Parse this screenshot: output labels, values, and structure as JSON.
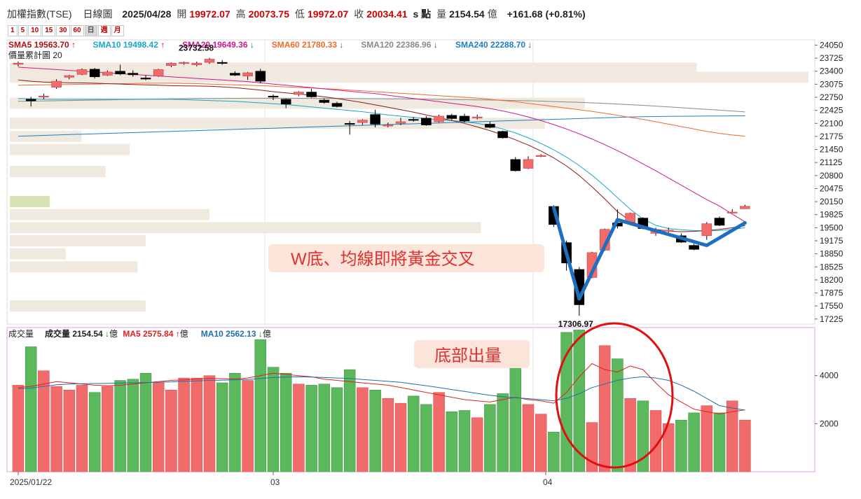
{
  "header": {
    "index_name": "加權指數(TSE)",
    "chart_kind": "日線圖",
    "date": "2025/04/28",
    "open_label": "開",
    "open": "19972.07",
    "high_label": "高",
    "high": "20073.75",
    "low_label": "低",
    "low": "19972.07",
    "close_label": "收",
    "close": "20034.41",
    "unit": "s 點",
    "volume_label": "量",
    "volume": "2154.54",
    "volume_unit": "億",
    "change": "+161.68 (+0.81%)"
  },
  "periods": [
    {
      "label": "1",
      "active": false
    },
    {
      "label": "5",
      "active": false
    },
    {
      "label": "10",
      "active": false
    },
    {
      "label": "15",
      "active": false
    },
    {
      "label": "30",
      "active": false
    },
    {
      "label": "60",
      "active": false
    },
    {
      "label": "日",
      "active": true
    },
    {
      "label": "週",
      "active": false
    },
    {
      "label": "月",
      "active": false
    }
  ],
  "ma_legend": [
    {
      "label": "SMA5 19563.70",
      "arrow": "↑",
      "color": "#b01010"
    },
    {
      "label": "SMA10 19498.42",
      "arrow": "↑",
      "color": "#1aa7c9"
    },
    {
      "label": "SMA20 19649.36",
      "arrow": "↓",
      "color": "#d0198f"
    },
    {
      "label": "SMA60 21780.33",
      "arrow": "↓",
      "color": "#ef6b2a"
    },
    {
      "label": "SMA120 22386.96",
      "arrow": "↓",
      "color": "#8a8a8a"
    },
    {
      "label": "SMA240 22288.70",
      "arrow": "↓",
      "color": "#1f7fc4"
    }
  ],
  "volume_profile_label": "價量累計圖 20",
  "volume_legend": [
    {
      "label": "成交量",
      "color": "#222222"
    },
    {
      "label": "成交量 2154.54",
      "arrow": "↓",
      "suffix": "億",
      "color": "#222222"
    },
    {
      "label": "MA5 2575.84",
      "arrow": "↑",
      "suffix": "億",
      "color": "#e02020"
    },
    {
      "label": "MA10 2562.13",
      "arrow": "↓",
      "suffix": "億",
      "color": "#1f6fb0"
    }
  ],
  "annotations": {
    "w_bottom": "W底、均線即將黃金交叉",
    "bottom_volume": "底部出量",
    "high_marker": "23732.58",
    "low_marker": "17306.97"
  },
  "colors": {
    "up": "#f26b6b",
    "down": "#000000",
    "vol_up": "#f26b6b",
    "vol_down": "#5cb85c",
    "w_line": "#1f6fc0",
    "circle": "#e01010"
  },
  "chart_data": {
    "type": "candlestick",
    "x_tick_labels": [
      "2025/01/22",
      "03",
      "04"
    ],
    "y_ticks_price": [
      24050,
      23725,
      23400,
      23075,
      22750,
      22425,
      22100,
      21775,
      21450,
      21125,
      20800,
      20475,
      20150,
      19825,
      19500,
      19175,
      18850,
      18525,
      18200,
      17875,
      17550,
      17225
    ],
    "y_ticks_volume": [
      4000,
      2000
    ],
    "candles": [
      {
        "o": 23570,
        "h": 23640,
        "l": 23520,
        "c": 23600
      },
      {
        "o": 22700,
        "h": 22760,
        "l": 22520,
        "c": 22660
      },
      {
        "o": 22760,
        "h": 22840,
        "l": 22700,
        "c": 22780
      },
      {
        "o": 23000,
        "h": 23200,
        "l": 22960,
        "c": 23150
      },
      {
        "o": 23250,
        "h": 23310,
        "l": 23200,
        "c": 23290
      },
      {
        "o": 23320,
        "h": 23470,
        "l": 23300,
        "c": 23440
      },
      {
        "o": 23450,
        "h": 23480,
        "l": 23220,
        "c": 23260
      },
      {
        "o": 23300,
        "h": 23420,
        "l": 23280,
        "c": 23380
      },
      {
        "o": 23400,
        "h": 23560,
        "l": 23300,
        "c": 23330
      },
      {
        "o": 23350,
        "h": 23420,
        "l": 23260,
        "c": 23310
      },
      {
        "o": 23230,
        "h": 23300,
        "l": 23180,
        "c": 23220
      },
      {
        "o": 23280,
        "h": 23460,
        "l": 23260,
        "c": 23440
      },
      {
        "o": 23540,
        "h": 23620,
        "l": 23500,
        "c": 23600
      },
      {
        "o": 23590,
        "h": 23640,
        "l": 23560,
        "c": 23620
      },
      {
        "o": 23560,
        "h": 23640,
        "l": 23520,
        "c": 23600
      },
      {
        "o": 23620,
        "h": 23732.58,
        "l": 23580,
        "c": 23700
      },
      {
        "o": 23620,
        "h": 23680,
        "l": 23560,
        "c": 23600
      },
      {
        "o": 23350,
        "h": 23400,
        "l": 23280,
        "c": 23300
      },
      {
        "o": 23280,
        "h": 23380,
        "l": 23180,
        "c": 23360
      },
      {
        "o": 23400,
        "h": 23460,
        "l": 23100,
        "c": 23150
      },
      {
        "o": 22780,
        "h": 22820,
        "l": 22680,
        "c": 22760
      },
      {
        "o": 22700,
        "h": 22720,
        "l": 22480,
        "c": 22580
      },
      {
        "o": 22820,
        "h": 22900,
        "l": 22780,
        "c": 22880
      },
      {
        "o": 22880,
        "h": 22960,
        "l": 22740,
        "c": 22760
      },
      {
        "o": 22680,
        "h": 22720,
        "l": 22590,
        "c": 22620
      },
      {
        "o": 22600,
        "h": 22640,
        "l": 22500,
        "c": 22520
      },
      {
        "o": 22100,
        "h": 22160,
        "l": 21820,
        "c": 22080
      },
      {
        "o": 22120,
        "h": 22200,
        "l": 22060,
        "c": 22180
      },
      {
        "o": 22320,
        "h": 22440,
        "l": 22000,
        "c": 22080
      },
      {
        "o": 22050,
        "h": 22120,
        "l": 22000,
        "c": 22060
      },
      {
        "o": 22100,
        "h": 22240,
        "l": 22060,
        "c": 22140
      },
      {
        "o": 22200,
        "h": 22260,
        "l": 22140,
        "c": 22180
      },
      {
        "o": 22230,
        "h": 22280,
        "l": 22040,
        "c": 22060
      },
      {
        "o": 22140,
        "h": 22320,
        "l": 22120,
        "c": 22280
      },
      {
        "o": 22300,
        "h": 22340,
        "l": 22180,
        "c": 22220
      },
      {
        "o": 22280,
        "h": 22340,
        "l": 22120,
        "c": 22160
      },
      {
        "o": 22250,
        "h": 22320,
        "l": 22200,
        "c": 22260
      },
      {
        "o": 22080,
        "h": 22140,
        "l": 21980,
        "c": 22000
      },
      {
        "o": 21900,
        "h": 21920,
        "l": 21720,
        "c": 21740
      },
      {
        "o": 21200,
        "h": 21260,
        "l": 20900,
        "c": 20920
      },
      {
        "o": 20980,
        "h": 21280,
        "l": 20960,
        "c": 21200
      },
      {
        "o": 21290,
        "h": 21330,
        "l": 21260,
        "c": 21300
      },
      {
        "o": 20030,
        "h": 20060,
        "l": 19520,
        "c": 19580
      },
      {
        "o": 19130,
        "h": 19180,
        "l": 18430,
        "c": 18620
      },
      {
        "o": 18460,
        "h": 18520,
        "l": 17306.97,
        "c": 17580
      },
      {
        "o": 18260,
        "h": 18900,
        "l": 18240,
        "c": 18880
      },
      {
        "o": 18940,
        "h": 19480,
        "l": 18920,
        "c": 19460
      },
      {
        "o": 19620,
        "h": 19960,
        "l": 19480,
        "c": 19540
      },
      {
        "o": 19640,
        "h": 19880,
        "l": 19600,
        "c": 19860
      },
      {
        "o": 19740,
        "h": 19760,
        "l": 19460,
        "c": 19480
      },
      {
        "o": 19360,
        "h": 19500,
        "l": 19300,
        "c": 19420
      },
      {
        "o": 19420,
        "h": 19500,
        "l": 19380,
        "c": 19440
      },
      {
        "o": 19300,
        "h": 19360,
        "l": 19120,
        "c": 19140
      },
      {
        "o": 19060,
        "h": 19100,
        "l": 18940,
        "c": 18960
      },
      {
        "o": 19300,
        "h": 19640,
        "l": 19200,
        "c": 19600
      },
      {
        "o": 19740,
        "h": 19780,
        "l": 19540,
        "c": 19560
      },
      {
        "o": 19870,
        "h": 19960,
        "l": 19860,
        "c": 19890
      },
      {
        "o": 19972.07,
        "h": 20073.75,
        "l": 19972.07,
        "c": 20034.41
      }
    ],
    "volumes": [
      3600,
      5200,
      4200,
      3550,
      3400,
      3600,
      3300,
      3550,
      3800,
      3850,
      4100,
      3700,
      3400,
      3900,
      3900,
      4000,
      3700,
      4100,
      3800,
      5500,
      4350,
      4100,
      3650,
      3600,
      3650,
      3500,
      4250,
      3500,
      3400,
      3050,
      2850,
      3150,
      2800,
      3300,
      2500,
      2550,
      2250,
      2800,
      3250,
      4350,
      2800,
      2400,
      1650,
      5800,
      5900,
      2050,
      5250,
      4700,
      3050,
      2950,
      2550,
      2000,
      2150,
      2450,
      2750,
      2450,
      2950,
      2150
    ],
    "ma5": [
      23180,
      23150,
      23130,
      23120,
      23110,
      23110,
      23100,
      23090,
      23080,
      23070,
      23060,
      23050,
      23040,
      23035,
      23030,
      23025,
      23010,
      22990,
      22960,
      22930,
      22890,
      22860,
      22830,
      22800,
      22760,
      22720,
      22670,
      22620,
      22560,
      22500,
      22440,
      22380,
      22310,
      22240,
      22170,
      22100,
      22010,
      21920,
      21810,
      21690,
      21560,
      21410,
      21240,
      21040,
      20800,
      20520,
      20220,
      19900,
      19670,
      19530,
      19460,
      19420,
      19400,
      19410,
      19430,
      19460,
      19500,
      19550
    ],
    "ma10": [
      22720,
      22710,
      22700,
      22700,
      22700,
      22700,
      22700,
      22700,
      22700,
      22700,
      22700,
      22700,
      22700,
      22690,
      22680,
      22670,
      22660,
      22650,
      22630,
      22610,
      22590,
      22570,
      22540,
      22510,
      22480,
      22450,
      22420,
      22390,
      22350,
      22310,
      22280,
      22250,
      22220,
      22190,
      22170,
      22140,
      22100,
      22040,
      21960,
      21860,
      21740,
      21600,
      21440,
      21260,
      21050,
      20810,
      20540,
      20250,
      19960,
      19720,
      19560,
      19480,
      19450,
      19430,
      19420,
      19430,
      19460,
      19500
    ],
    "ma20": [
      23500,
      23480,
      23460,
      23440,
      23420,
      23400,
      23380,
      23360,
      23340,
      23320,
      23300,
      23280,
      23260,
      23240,
      23220,
      23200,
      23180,
      23160,
      23140,
      23110,
      23080,
      23050,
      23020,
      22990,
      22960,
      22930,
      22900,
      22870,
      22840,
      22800,
      22760,
      22720,
      22680,
      22640,
      22600,
      22560,
      22520,
      22470,
      22410,
      22340,
      22260,
      22170,
      22070,
      21960,
      21840,
      21710,
      21570,
      21420,
      21260,
      21090,
      20920,
      20740,
      20560,
      20380,
      20200,
      20040,
      19840,
      19650
    ],
    "ma60": [
      23050,
      23055,
      23060,
      23065,
      23070,
      23075,
      23080,
      23085,
      23090,
      23095,
      23100,
      23100,
      23100,
      23095,
      23090,
      23080,
      23070,
      23060,
      23050,
      23040,
      23025,
      23010,
      22995,
      22980,
      22965,
      22950,
      22930,
      22910,
      22890,
      22870,
      22850,
      22830,
      22810,
      22790,
      22770,
      22750,
      22730,
      22700,
      22670,
      22640,
      22600,
      22560,
      22520,
      22480,
      22440,
      22400,
      22350,
      22300,
      22250,
      22200,
      22140,
      22080,
      22020,
      21960,
      21900,
      21850,
      21810,
      21780
    ],
    "ma120": [
      22650,
      22655,
      22660,
      22665,
      22670,
      22675,
      22680,
      22685,
      22690,
      22695,
      22700,
      22705,
      22710,
      22715,
      22718,
      22720,
      22722,
      22724,
      22725,
      22725,
      22725,
      22725,
      22724,
      22723,
      22722,
      22720,
      22718,
      22716,
      22714,
      22712,
      22710,
      22706,
      22702,
      22698,
      22694,
      22690,
      22686,
      22682,
      22676,
      22670,
      22662,
      22654,
      22644,
      22634,
      22622,
      22610,
      22596,
      22582,
      22566,
      22550,
      22530,
      22510,
      22490,
      22470,
      22450,
      22430,
      22408,
      22386
    ],
    "ma240": [
      21780,
      21790,
      21800,
      21810,
      21820,
      21830,
      21840,
      21850,
      21860,
      21870,
      21880,
      21890,
      21900,
      21910,
      21920,
      21930,
      21940,
      21950,
      21960,
      21970,
      21980,
      21990,
      22000,
      22010,
      22020,
      22030,
      22040,
      22050,
      22060,
      22070,
      22080,
      22090,
      22100,
      22110,
      22120,
      22130,
      22140,
      22150,
      22160,
      22170,
      22180,
      22190,
      22200,
      22210,
      22220,
      22230,
      22240,
      22250,
      22260,
      22265,
      22270,
      22275,
      22278,
      22280,
      22283,
      22285,
      22287,
      22288
    ],
    "vol_ma5": [
      3500,
      3550,
      3650,
      3750,
      3700,
      3650,
      3600,
      3580,
      3600,
      3650,
      3700,
      3750,
      3800,
      3820,
      3850,
      3880,
      3870,
      3860,
      3900,
      4000,
      4100,
      4050,
      4000,
      3950,
      3850,
      3800,
      3750,
      3700,
      3650,
      3600,
      3500,
      3400,
      3300,
      3200,
      3100,
      3000,
      2950,
      2900,
      3000,
      3100,
      3000,
      2950,
      2850,
      3300,
      3950,
      4500,
      4250,
      4150,
      4400,
      4250,
      3700,
      3200,
      2900,
      2600,
      2500,
      2400,
      2500,
      2575.84
    ],
    "vol_ma10": [
      3450,
      3480,
      3550,
      3620,
      3650,
      3660,
      3670,
      3680,
      3690,
      3700,
      3710,
      3720,
      3740,
      3760,
      3780,
      3800,
      3810,
      3820,
      3840,
      3880,
      3920,
      3940,
      3950,
      3940,
      3920,
      3900,
      3880,
      3840,
      3800,
      3760,
      3720,
      3650,
      3580,
      3500,
      3420,
      3340,
      3260,
      3180,
      3120,
      3080,
      3040,
      3000,
      2950,
      3050,
      3250,
      3500,
      3650,
      3800,
      3900,
      3950,
      3900,
      3800,
      3600,
      3350,
      3050,
      2750,
      2650,
      2562.13
    ],
    "volume_profile": [
      {
        "price": 23475,
        "length": 0.86,
        "highlight": false
      },
      {
        "price": 23250,
        "length": 1.0,
        "highlight": false
      },
      {
        "price": 22600,
        "length": 0.72,
        "highlight": false
      },
      {
        "price": 22100,
        "length": 0.67,
        "highlight": false
      },
      {
        "price": 21775,
        "length": 0.09,
        "highlight": false
      },
      {
        "price": 21450,
        "length": 0.15,
        "highlight": false
      },
      {
        "price": 20900,
        "length": 0.12,
        "highlight": false
      },
      {
        "price": 20150,
        "length": 0.05,
        "highlight": true
      },
      {
        "price": 19825,
        "length": 0.25,
        "highlight": false
      },
      {
        "price": 19500,
        "length": 0.59,
        "highlight": false
      },
      {
        "price": 19175,
        "length": 0.17,
        "highlight": false
      },
      {
        "price": 18850,
        "length": 0.07,
        "highlight": false
      },
      {
        "price": 18525,
        "length": 0.16,
        "highlight": false
      },
      {
        "price": 17550,
        "length": 0.17,
        "highlight": false
      }
    ],
    "w_pattern": [
      {
        "i": 42,
        "p": 20000
      },
      {
        "i": 44,
        "p": 17730
      },
      {
        "i": 47,
        "p": 19700
      },
      {
        "i": 54,
        "p": 19060
      },
      {
        "i": 57,
        "p": 19620
      }
    ]
  }
}
